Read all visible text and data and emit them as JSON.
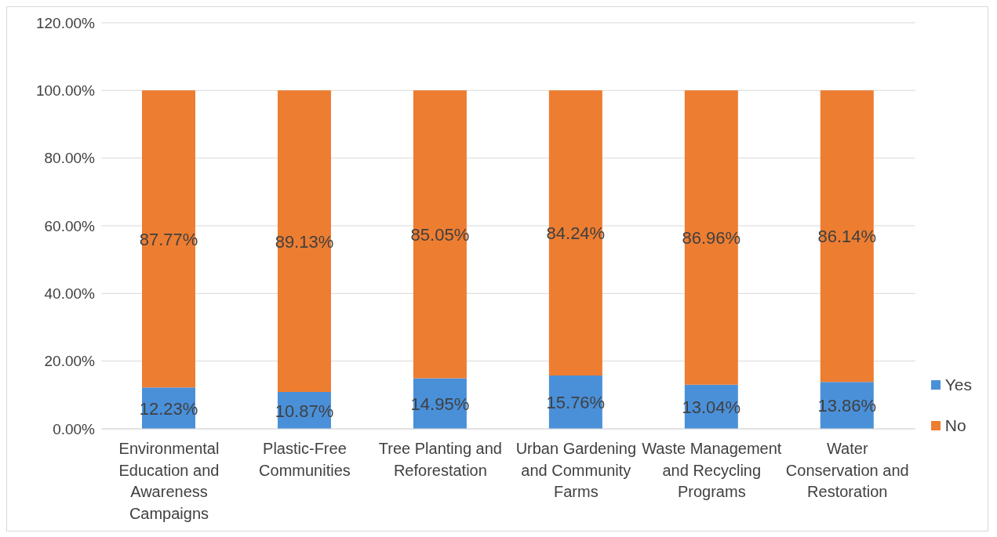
{
  "chart_data": {
    "type": "bar",
    "stacked": true,
    "categories": [
      "Environmental Education and Awareness Campaigns",
      "Plastic-Free Communities",
      "Tree Planting and Reforestation",
      "Urban Gardening and Community Farms",
      "Waste Management and Recycling Programs",
      "Water Conservation and Restoration"
    ],
    "series": [
      {
        "name": "Yes",
        "color": "#4a90d9",
        "values": [
          12.23,
          10.87,
          14.95,
          15.76,
          13.04,
          13.86
        ],
        "value_labels": [
          "12.23%",
          "10.87%",
          "14.95%",
          "15.76%",
          "13.04%",
          "13.86%"
        ]
      },
      {
        "name": "No",
        "color": "#ed7d31",
        "values": [
          87.77,
          89.13,
          85.05,
          84.24,
          86.96,
          86.14
        ],
        "value_labels": [
          "87.77%",
          "89.13%",
          "85.05%",
          "84.24%",
          "86.96%",
          "86.14%"
        ]
      }
    ],
    "ylim": [
      0,
      120
    ],
    "yticks": [
      {
        "value": 0,
        "label": "0.00%"
      },
      {
        "value": 20,
        "label": "20.00%"
      },
      {
        "value": 40,
        "label": "40.00%"
      },
      {
        "value": 60,
        "label": "60.00%"
      },
      {
        "value": 80,
        "label": "80.00%"
      },
      {
        "value": 100,
        "label": "100.00%"
      },
      {
        "value": 120,
        "label": "120.00%"
      }
    ],
    "grid": "y",
    "legend": "right"
  }
}
